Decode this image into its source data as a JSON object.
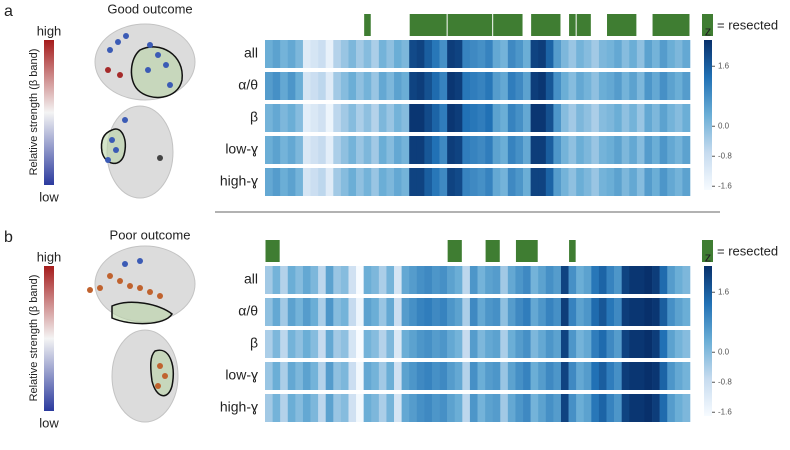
{
  "chart_data": [
    {
      "type": "heatmap",
      "panel_label": "a",
      "title": "Good outcome",
      "rows": [
        "all",
        "α/θ",
        "β",
        "low-ɣ",
        "high-ɣ"
      ],
      "values": [
        [
          0.3,
          0.5,
          0.2,
          0.4,
          0.1,
          -1.2,
          -1.0,
          -0.8,
          -1.4,
          -0.5,
          -0.2,
          0.1,
          -0.3,
          0.0,
          -0.4,
          0.2,
          -0.1,
          0.3,
          0.1,
          1.9,
          2.0,
          1.6,
          1.2,
          0.8,
          2.1,
          2.0,
          1.0,
          0.9,
          0.8,
          1.0,
          0.4,
          0.2,
          0.9,
          0.7,
          0.3,
          2.0,
          2.1,
          1.5,
          0.6,
          0.1,
          -0.2,
          0.2,
          0.0,
          -0.3,
          0.1,
          0.2,
          0.4,
          0.0,
          0.3,
          -0.1,
          0.5,
          0.2,
          0.6,
          0.3,
          0.1,
          0.4
        ],
        [
          0.6,
          0.8,
          0.4,
          0.7,
          0.3,
          -1.0,
          -0.8,
          -0.6,
          -1.2,
          -0.3,
          0.0,
          0.3,
          -0.1,
          0.2,
          -0.2,
          0.4,
          0.1,
          0.5,
          0.3,
          2.0,
          2.1,
          1.8,
          1.4,
          1.0,
          2.2,
          2.1,
          1.2,
          1.1,
          1.0,
          1.2,
          0.6,
          0.4,
          1.1,
          0.9,
          0.5,
          2.1,
          2.2,
          1.7,
          0.8,
          0.3,
          0.0,
          0.4,
          0.2,
          -0.1,
          0.3,
          0.4,
          0.6,
          0.2,
          0.5,
          0.1,
          0.7,
          0.4,
          0.8,
          0.5,
          0.3,
          0.6
        ],
        [
          0.2,
          0.4,
          0.1,
          0.3,
          0.0,
          -1.3,
          -1.1,
          -0.9,
          -1.5,
          -0.6,
          -0.3,
          0.0,
          -0.4,
          -0.1,
          -0.5,
          0.1,
          -0.2,
          0.2,
          0.0,
          2.2,
          2.2,
          1.9,
          1.5,
          1.1,
          2.2,
          2.1,
          1.3,
          1.2,
          1.1,
          1.3,
          0.5,
          0.3,
          1.0,
          0.8,
          0.4,
          2.2,
          2.2,
          1.8,
          0.7,
          0.0,
          -0.3,
          0.1,
          -0.1,
          -0.4,
          0.0,
          0.1,
          0.3,
          -0.1,
          0.2,
          -0.2,
          0.4,
          0.1,
          0.5,
          0.2,
          0.0,
          0.3
        ],
        [
          0.3,
          0.5,
          0.2,
          0.4,
          0.1,
          -1.1,
          -0.9,
          -0.7,
          -1.3,
          -0.4,
          -0.1,
          0.2,
          -0.2,
          0.1,
          -0.3,
          0.3,
          0.0,
          0.4,
          0.2,
          2.1,
          2.1,
          1.7,
          1.3,
          0.9,
          2.1,
          2.0,
          1.1,
          1.0,
          0.9,
          1.1,
          0.5,
          0.3,
          1.0,
          0.8,
          0.4,
          2.1,
          2.1,
          1.6,
          0.7,
          0.2,
          -0.1,
          0.3,
          0.1,
          -0.2,
          0.2,
          0.3,
          0.5,
          0.1,
          0.4,
          0.0,
          0.6,
          0.3,
          0.7,
          0.4,
          0.2,
          0.5
        ],
        [
          0.4,
          0.6,
          0.3,
          0.5,
          0.2,
          -1.0,
          -0.8,
          -0.6,
          -1.2,
          -0.3,
          0.0,
          0.3,
          -0.1,
          0.2,
          -0.2,
          0.3,
          0.1,
          0.4,
          0.2,
          2.0,
          2.0,
          1.6,
          1.2,
          0.9,
          2.0,
          1.9,
          1.0,
          0.9,
          0.8,
          1.0,
          0.4,
          0.2,
          0.9,
          0.7,
          0.3,
          2.0,
          2.0,
          1.5,
          0.6,
          0.2,
          -0.1,
          0.3,
          0.1,
          -0.2,
          0.2,
          0.3,
          0.5,
          0.1,
          0.4,
          0.0,
          0.6,
          0.3,
          0.7,
          0.4,
          0.2,
          0.5
        ]
      ],
      "resected": [
        [
          13,
          13
        ],
        [
          19,
          23
        ],
        [
          24,
          29
        ],
        [
          30,
          33
        ],
        [
          35,
          38
        ],
        [
          40,
          40
        ],
        [
          41,
          42
        ],
        [
          45,
          48
        ],
        [
          51,
          55
        ]
      ],
      "resected_label": "= resected",
      "resected_color": "#3f7d32",
      "colorbar_label": "z",
      "zlim": [
        -1.7,
        2.3
      ],
      "zticks": [
        1.6,
        {
          "value": 0,
          "label": "0.0"
        },
        -0.8,
        -1.6
      ],
      "colormap": [
        "#f7fbff",
        "#c6dbef",
        "#6baed6",
        "#2171b5",
        "#08306b"
      ],
      "strength_scale": {
        "label": "Relative strength (β band)",
        "high": "high",
        "low": "low",
        "colors": [
          "#2b3a9e",
          "#f4f4f4",
          "#a51c1c"
        ]
      }
    },
    {
      "type": "heatmap",
      "panel_label": "b",
      "title": "Poor outcome",
      "rows": [
        "all",
        "α/θ",
        "β",
        "low-ɣ",
        "high-ɣ"
      ],
      "values": [
        [
          -0.3,
          0.2,
          -0.5,
          0.3,
          0.0,
          0.4,
          0.1,
          -0.6,
          0.5,
          -0.2,
          0.0,
          -0.9,
          -1.7,
          0.3,
          0.1,
          -0.4,
          0.2,
          -1.0,
          0.4,
          0.6,
          0.8,
          0.9,
          0.7,
          0.8,
          0.5,
          0.3,
          -0.6,
          0.7,
          0.2,
          0.5,
          0.6,
          -0.3,
          0.4,
          0.7,
          0.9,
          0.2,
          0.5,
          0.8,
          0.6,
          2.0,
          0.8,
          0.3,
          0.5,
          1.2,
          1.5,
          1.0,
          0.7,
          2.0,
          2.2,
          2.2,
          2.3,
          2.1,
          1.4,
          0.6,
          0.3,
          0.1
        ],
        [
          -0.1,
          0.4,
          -0.3,
          0.5,
          0.2,
          0.6,
          0.3,
          -0.4,
          0.7,
          0.0,
          0.2,
          -0.7,
          -1.5,
          0.5,
          0.3,
          -0.2,
          0.4,
          -0.8,
          0.6,
          0.8,
          1.0,
          1.1,
          0.9,
          1.0,
          0.7,
          0.5,
          -0.4,
          0.9,
          0.4,
          0.7,
          0.8,
          -0.1,
          0.6,
          0.9,
          1.1,
          0.4,
          0.7,
          1.0,
          0.8,
          2.1,
          1.0,
          0.5,
          0.7,
          1.4,
          1.7,
          1.2,
          0.9,
          2.1,
          2.2,
          2.2,
          2.3,
          2.2,
          1.6,
          0.8,
          0.5,
          0.3
        ],
        [
          -0.4,
          0.1,
          -0.6,
          0.2,
          -0.1,
          0.3,
          0.0,
          -0.7,
          0.4,
          -0.3,
          -0.1,
          -1.0,
          -1.7,
          0.2,
          0.0,
          -0.5,
          0.1,
          -1.1,
          0.3,
          0.5,
          0.7,
          0.8,
          0.6,
          0.7,
          0.4,
          0.2,
          -0.7,
          0.6,
          0.1,
          0.4,
          0.5,
          -0.4,
          0.3,
          0.6,
          0.8,
          0.1,
          0.4,
          0.7,
          0.5,
          2.0,
          0.7,
          0.2,
          0.4,
          1.1,
          1.4,
          0.9,
          0.6,
          2.0,
          2.2,
          2.2,
          2.3,
          2.1,
          1.3,
          0.5,
          0.2,
          0.0
        ],
        [
          -0.2,
          0.3,
          -0.4,
          0.4,
          0.1,
          0.5,
          0.2,
          -0.5,
          0.6,
          -0.1,
          0.1,
          -0.8,
          -1.6,
          0.4,
          0.2,
          -0.3,
          0.3,
          -0.9,
          0.5,
          0.7,
          0.9,
          1.0,
          0.8,
          0.9,
          0.6,
          0.4,
          -0.5,
          0.8,
          0.3,
          0.6,
          0.7,
          -0.2,
          0.5,
          0.8,
          1.0,
          0.3,
          0.6,
          0.9,
          0.7,
          2.0,
          0.9,
          0.4,
          0.6,
          1.3,
          1.6,
          1.1,
          0.8,
          2.1,
          2.2,
          2.2,
          2.3,
          2.2,
          1.5,
          0.7,
          0.4,
          0.2
        ],
        [
          -0.3,
          0.2,
          -0.5,
          0.3,
          0.0,
          0.4,
          0.1,
          -0.6,
          0.5,
          -0.2,
          0.0,
          -0.9,
          -1.6,
          0.3,
          0.1,
          -0.4,
          0.2,
          -1.0,
          0.4,
          0.6,
          0.8,
          0.9,
          0.7,
          0.8,
          0.5,
          0.3,
          -0.6,
          0.7,
          0.2,
          0.5,
          0.6,
          -0.3,
          0.4,
          0.7,
          0.9,
          0.2,
          0.5,
          0.8,
          0.6,
          2.0,
          0.8,
          0.3,
          0.5,
          1.2,
          1.5,
          1.0,
          0.7,
          2.0,
          2.2,
          2.2,
          2.3,
          2.1,
          1.4,
          0.6,
          0.3,
          0.1
        ]
      ],
      "resected": [
        [
          0,
          1
        ],
        [
          24,
          25
        ],
        [
          29,
          30
        ],
        [
          33,
          35
        ],
        [
          40,
          40
        ]
      ],
      "resected_label": "= resected",
      "resected_color": "#3f7d32",
      "colorbar_label": "z",
      "zlim": [
        -1.7,
        2.3
      ],
      "zticks": [
        1.6,
        {
          "value": 0,
          "label": "0.0"
        },
        -0.8,
        -1.6
      ],
      "colormap": [
        "#f7fbff",
        "#c6dbef",
        "#6baed6",
        "#2171b5",
        "#08306b"
      ],
      "strength_scale": {
        "label": "Relative strength (β band)",
        "high": "high",
        "low": "low",
        "colors": [
          "#2b3a9e",
          "#f4f4f4",
          "#a51c1c"
        ]
      }
    }
  ]
}
